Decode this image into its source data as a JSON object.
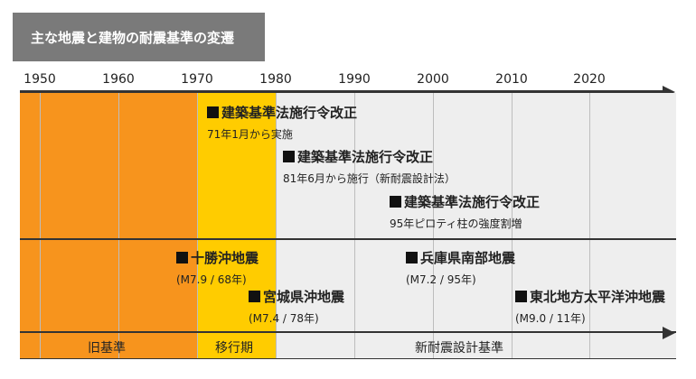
{
  "title": "主な地震と建物の耐震基準の変遷",
  "years": [
    "1950",
    "1960",
    "1970",
    "1980",
    "1990",
    "2000",
    "2010",
    "2020"
  ],
  "eras": [
    {
      "label": "旧基準",
      "color": "#f7941d"
    },
    {
      "label": "移行期",
      "color": "#ffcc00"
    },
    {
      "label": "新耐震設計基準",
      "color": "#eeeeee"
    }
  ],
  "revisions": [
    {
      "title": "建築基準法施行令改正",
      "note": "71年1月から実施"
    },
    {
      "title": "建築基準法施行令改正",
      "note": "81年6月から施行（新耐震設計法）"
    },
    {
      "title": "建築基準法施行令改正",
      "note": "95年ピロティ柱の強度割増"
    }
  ],
  "earthquakes": [
    {
      "title": "十勝沖地震",
      "note": "(M7.9 / 68年)"
    },
    {
      "title": "宮城県沖地震",
      "note": "(M7.4 / 78年)"
    },
    {
      "title": "兵庫県南部地震",
      "note": "(M7.2 / 95年)"
    },
    {
      "title": "東北地方太平洋沖地震",
      "note": "(M9.0 / 11年)"
    }
  ]
}
